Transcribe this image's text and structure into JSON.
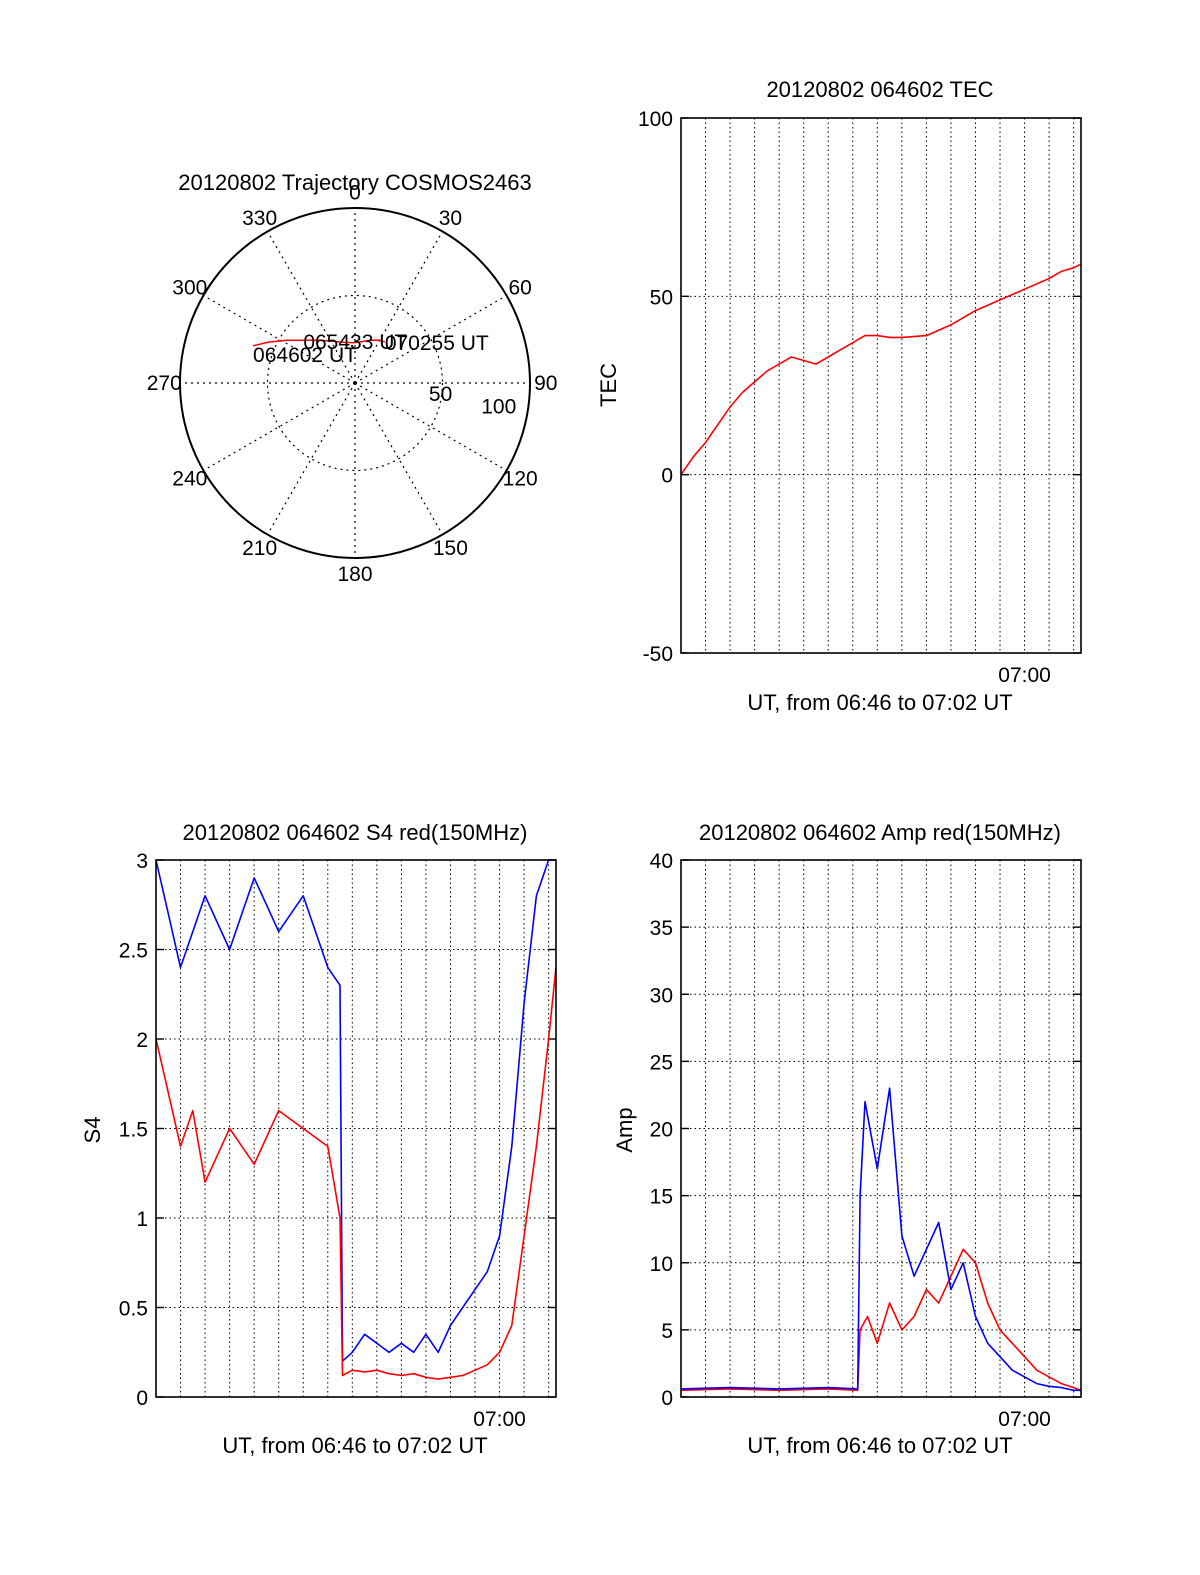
{
  "colors": {
    "series_red": "#ff0000",
    "series_blue": "#0000ff",
    "axes": "#000000",
    "grid": "#000000"
  },
  "chart_data": [
    {
      "type": "polar",
      "title": "20120802 Trajectory COSMOS2463",
      "azimuth_ticks": [
        "0",
        "30",
        "60",
        "90",
        "120",
        "150",
        "180",
        "210",
        "240",
        "270",
        "300",
        "330"
      ],
      "radius_ticks": [
        "50",
        "100"
      ],
      "grid": true,
      "series": [
        {
          "color": "#ff0000",
          "points": [
            {
              "az": 290,
              "r": 62
            },
            {
              "az": 295,
              "r": 55
            },
            {
              "az": 302,
              "r": 46
            },
            {
              "az": 310,
              "r": 38
            },
            {
              "az": 320,
              "r": 32
            },
            {
              "az": 332,
              "r": 27
            },
            {
              "az": 345,
              "r": 24
            },
            {
              "az": 358,
              "r": 23
            },
            {
              "az": 10,
              "r": 24
            },
            {
              "az": 20,
              "r": 26
            },
            {
              "az": 29,
              "r": 28
            },
            {
              "az": 36,
              "r": 29
            }
          ]
        }
      ],
      "annotations": [
        {
          "text": "064602 UT",
          "az": 290,
          "r": 62
        },
        {
          "text": "065433 UT",
          "az": 355,
          "r": 24
        },
        {
          "text": "070255 UT",
          "az": 36,
          "r": 29
        }
      ]
    },
    {
      "type": "line",
      "title": "20120802 064602 TEC",
      "xlabel": "UT, from 06:46 to 07:02 UT",
      "ylabel": "TEC",
      "xlim": [
        0,
        16.3
      ],
      "ylim": [
        -50,
        100
      ],
      "x_unit": "minutes after 06:46 UT",
      "yticks": [
        "-50",
        "0",
        "50",
        "100"
      ],
      "xticks": [
        {
          "x": 14,
          "label": "07:00"
        }
      ],
      "grid": true,
      "series": [
        {
          "color": "#ff0000",
          "x": [
            0,
            0.5,
            1,
            1.5,
            2,
            2.5,
            3,
            3.5,
            4,
            4.5,
            5,
            5.5,
            6,
            6.5,
            7,
            7.5,
            8,
            8.5,
            9,
            10,
            11,
            12,
            13,
            14,
            15,
            15.5,
            16,
            16.3
          ],
          "y": [
            0,
            5,
            9,
            14,
            19,
            23,
            26,
            29,
            31,
            33,
            32,
            31,
            33,
            35,
            37,
            39,
            39,
            38.5,
            38.5,
            39,
            42,
            46,
            49,
            52,
            55,
            57,
            58,
            59
          ]
        }
      ]
    },
    {
      "type": "line",
      "title": "20120802 064602 S4 red(150MHz)",
      "xlabel": "UT, from 06:46 to 07:02 UT",
      "ylabel": "S4",
      "xlim": [
        0,
        16.3
      ],
      "ylim": [
        0,
        3
      ],
      "x_unit": "minutes after 06:46 UT",
      "yticks": [
        "0",
        "0.5",
        "1",
        "1.5",
        "2",
        "2.5",
        "3"
      ],
      "xticks": [
        {
          "x": 14,
          "label": "07:00"
        }
      ],
      "grid": true,
      "series": [
        {
          "color": "#0000ff",
          "x": [
            0,
            0.5,
            1,
            1.5,
            2,
            3,
            4,
            5,
            6,
            7,
            7.5,
            7.6,
            8,
            8.5,
            9,
            9.5,
            10,
            10.5,
            11,
            11.5,
            12,
            12.5,
            13,
            13.5,
            14,
            14.5,
            15,
            15.5,
            16,
            16.3
          ],
          "y": [
            3,
            2.7,
            2.4,
            2.6,
            2.8,
            2.5,
            2.9,
            2.6,
            2.8,
            2.4,
            2.3,
            0.2,
            0.25,
            0.35,
            0.3,
            0.25,
            0.3,
            0.25,
            0.35,
            0.25,
            0.4,
            0.5,
            0.6,
            0.7,
            0.9,
            1.4,
            2.2,
            2.8,
            3,
            3
          ]
        },
        {
          "color": "#ff0000",
          "x": [
            0,
            0.5,
            1,
            1.5,
            2,
            3,
            4,
            5,
            6,
            7,
            7.5,
            7.6,
            8,
            8.5,
            9,
            9.5,
            10,
            10.5,
            11,
            11.5,
            12,
            12.5,
            13,
            13.5,
            14,
            14.5,
            15,
            15.5,
            16,
            16.3
          ],
          "y": [
            2.0,
            1.7,
            1.4,
            1.6,
            1.2,
            1.5,
            1.3,
            1.6,
            1.5,
            1.4,
            1.0,
            0.12,
            0.15,
            0.14,
            0.15,
            0.13,
            0.12,
            0.13,
            0.11,
            0.1,
            0.11,
            0.12,
            0.15,
            0.18,
            0.25,
            0.4,
            0.9,
            1.4,
            2.0,
            2.4
          ]
        }
      ]
    },
    {
      "type": "line",
      "title": "20120802 064602 Amp red(150MHz)",
      "xlabel": "UT, from 06:46 to 07:02 UT",
      "ylabel": "Amp",
      "xlim": [
        0,
        16.3
      ],
      "ylim": [
        0,
        40
      ],
      "x_unit": "minutes after 06:46 UT",
      "yticks": [
        "0",
        "5",
        "10",
        "15",
        "20",
        "25",
        "30",
        "35",
        "40"
      ],
      "xticks": [
        {
          "x": 14,
          "label": "07:00"
        }
      ],
      "grid": true,
      "series": [
        {
          "color": "#ff0000",
          "x": [
            0,
            2,
            4,
            6,
            7.2,
            7.3,
            7.6,
            8,
            8.5,
            9,
            9.5,
            10,
            10.5,
            11,
            11.5,
            12,
            12.5,
            13,
            13.5,
            14,
            14.5,
            15,
            15.5,
            16,
            16.3
          ],
          "y": [
            0.5,
            0.6,
            0.5,
            0.6,
            0.5,
            5,
            6,
            4,
            7,
            5,
            6,
            8,
            7,
            9,
            11,
            10,
            7,
            5,
            4,
            3,
            2,
            1.5,
            1,
            0.7,
            0.5
          ]
        },
        {
          "color": "#0000ff",
          "x": [
            0,
            2,
            4,
            6,
            7.2,
            7.3,
            7.5,
            8,
            8.5,
            9,
            9.5,
            10,
            10.5,
            11,
            11.5,
            12,
            12.5,
            13,
            13.5,
            14,
            14.5,
            15,
            15.5,
            16,
            16.3
          ],
          "y": [
            0.6,
            0.7,
            0.6,
            0.7,
            0.6,
            15,
            22,
            17,
            23,
            12,
            9,
            11,
            13,
            8,
            10,
            6,
            4,
            3,
            2,
            1.5,
            1,
            0.8,
            0.7,
            0.5,
            0.5
          ]
        }
      ]
    }
  ]
}
